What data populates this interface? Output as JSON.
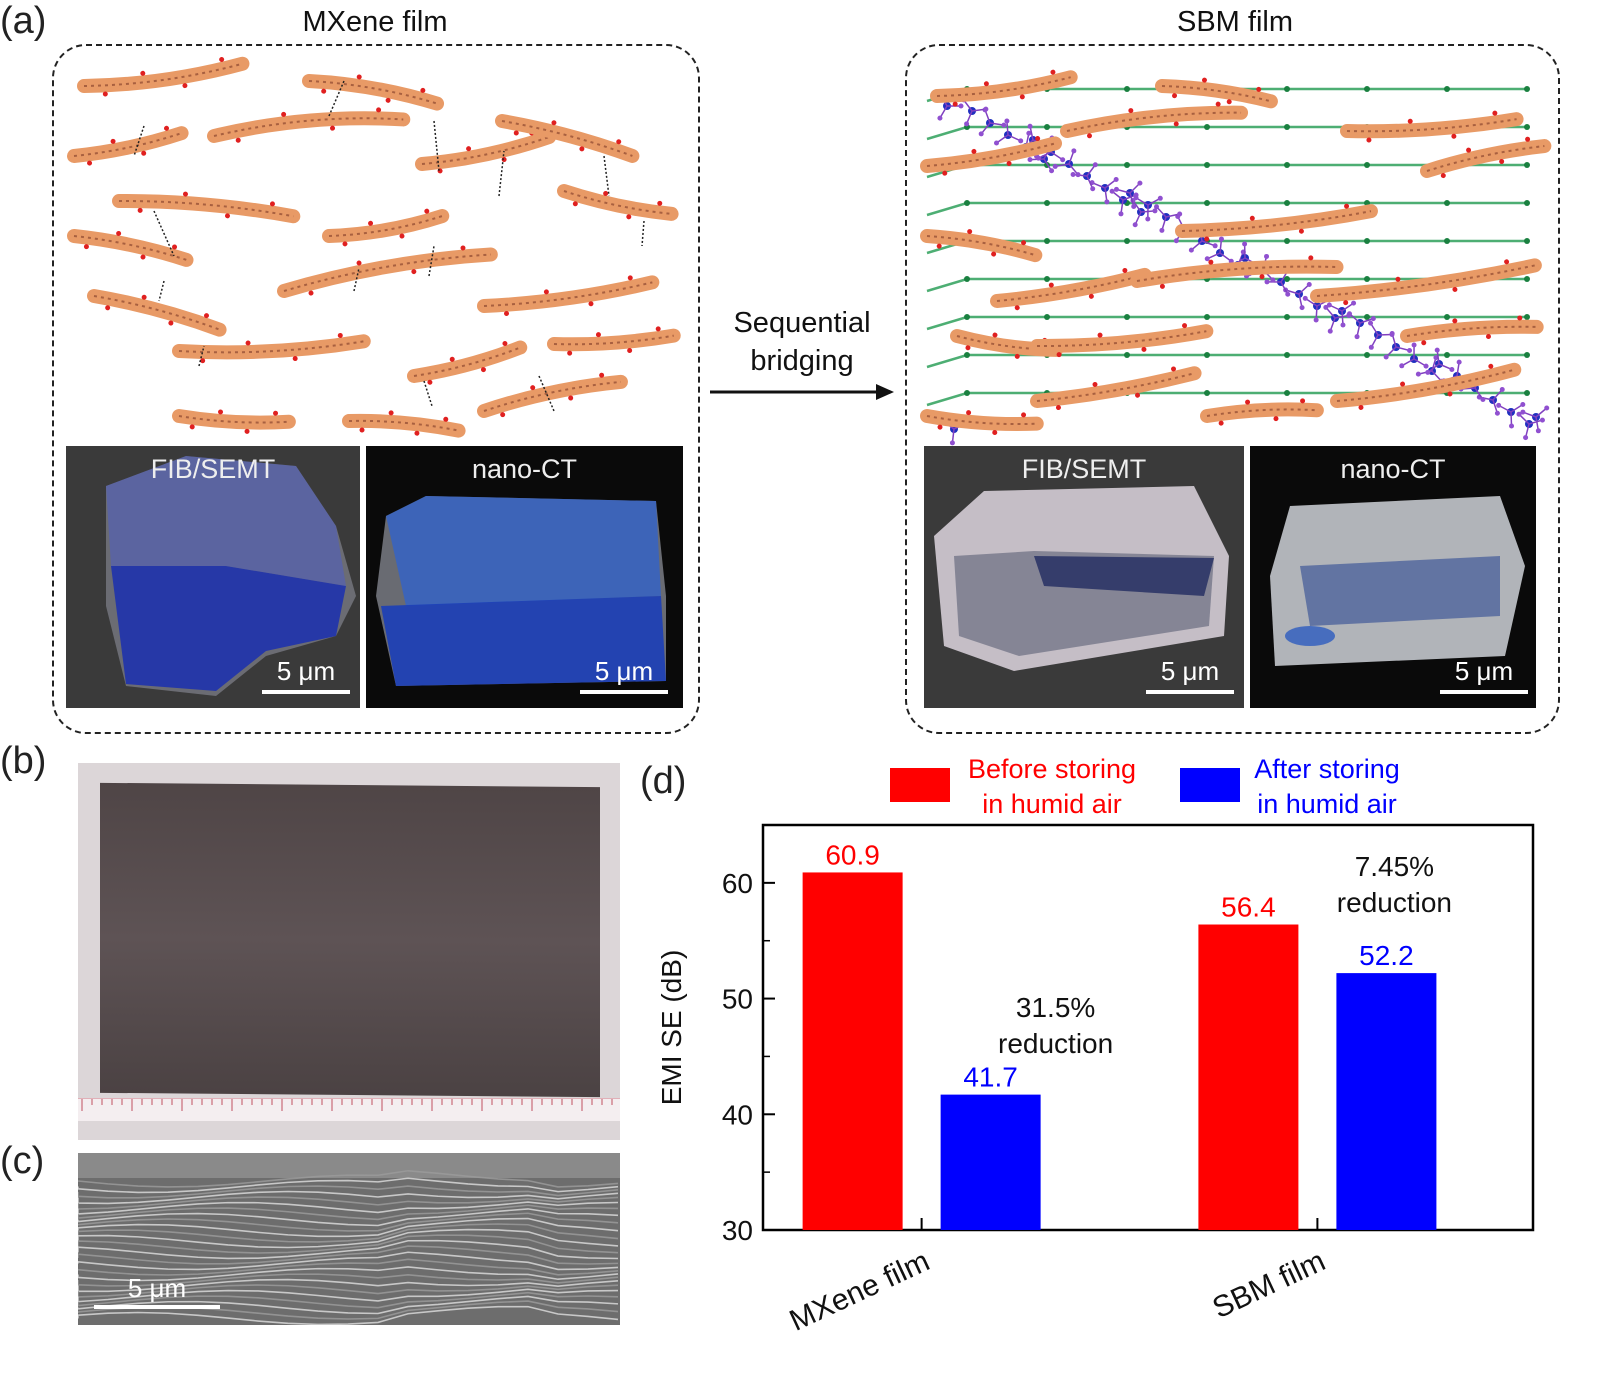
{
  "panel_a": {
    "label": "(a)",
    "left_title": "MXene film",
    "right_title": "SBM film",
    "arrow_text_line1": "Sequential",
    "arrow_text_line2": "bridging",
    "left_images": [
      {
        "label": "FIB/SEMT",
        "scale": "5 μm"
      },
      {
        "label": "nano-CT",
        "scale": "5 μm"
      }
    ],
    "right_images": [
      {
        "label": "FIB/SEMT",
        "scale": "5 μm"
      },
      {
        "label": "nano-CT",
        "scale": "5 μm"
      }
    ]
  },
  "panel_b": {
    "label": "(b)"
  },
  "panel_c": {
    "label": "(c)",
    "scale": "5 μm"
  },
  "panel_d": {
    "label": "(d)"
  },
  "chart_data": {
    "type": "bar",
    "categories": [
      "MXene film",
      "SBM film"
    ],
    "series": [
      {
        "name": "Before storing in humid air",
        "legend_line1": "Before storing",
        "legend_line2": "in humid air",
        "color": "#ff0000",
        "values": [
          60.9,
          56.4
        ],
        "labels": [
          "60.9",
          "56.4"
        ]
      },
      {
        "name": "After storing in humid air",
        "legend_line1": "After storing",
        "legend_line2": "in humid air",
        "color": "#0000ff",
        "values": [
          41.7,
          52.2
        ],
        "labels": [
          "41.7",
          "52.2"
        ]
      }
    ],
    "ylabel": "EMI SE (dB)",
    "ylim": [
      30,
      65
    ],
    "yticks": [
      "30",
      "40",
      "50",
      "60"
    ],
    "annotations": [
      {
        "category": "MXene film",
        "line1": "31.5%",
        "line2": "reduction"
      },
      {
        "category": "SBM film",
        "line1": "7.45%",
        "line2": "reduction"
      }
    ]
  }
}
